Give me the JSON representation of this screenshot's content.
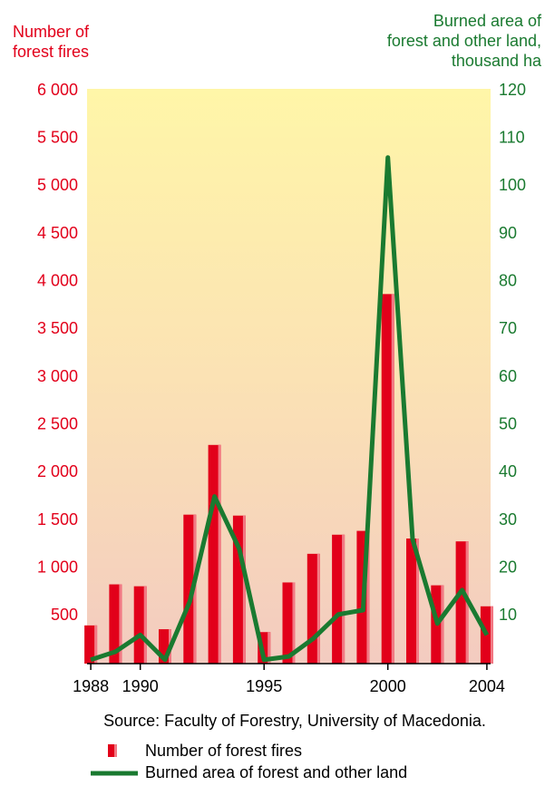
{
  "chart_data": {
    "type": "bar-line",
    "y_axis_label": [
      "Number of",
      "forest fires"
    ],
    "y2_axis_label": [
      "Burned area of",
      "forest and other land,",
      "thousand ha"
    ],
    "source": "Source: Faculty of Forestry, University of Macedonia.",
    "x": [
      1988,
      1989,
      1990,
      1991,
      1992,
      1993,
      1994,
      1995,
      1996,
      1997,
      1998,
      1999,
      2000,
      2001,
      2002,
      2003,
      2004
    ],
    "xlim": [
      1987.85,
      2004.15
    ],
    "xticks": [
      1988,
      1990,
      1995,
      2000,
      2004
    ],
    "ylim": [
      0,
      6000
    ],
    "yticks": [
      {
        "value": 500,
        "label": "500"
      },
      {
        "value": 1000,
        "label": "1 000"
      },
      {
        "value": 1500,
        "label": "1 500"
      },
      {
        "value": 2000,
        "label": "2 000"
      },
      {
        "value": 2500,
        "label": "2 500"
      },
      {
        "value": 3000,
        "label": "3 000"
      },
      {
        "value": 3500,
        "label": "3 500"
      },
      {
        "value": 4000,
        "label": "4 000"
      },
      {
        "value": 4500,
        "label": "4 500"
      },
      {
        "value": 5000,
        "label": "5 000"
      },
      {
        "value": 5500,
        "label": "5 500"
      },
      {
        "value": 6000,
        "label": "6 000"
      }
    ],
    "y2lim": [
      0,
      120
    ],
    "y2ticks": [
      10,
      20,
      30,
      40,
      50,
      60,
      70,
      80,
      90,
      100,
      110,
      120
    ],
    "series": [
      {
        "name": "Number of forest fires",
        "type": "bar",
        "color": "#e2001a",
        "values": [
          400,
          830,
          810,
          360,
          1560,
          2290,
          1550,
          330,
          850,
          1150,
          1350,
          1390,
          3870,
          1310,
          820,
          1280,
          600
        ]
      },
      {
        "name": "Burned area of forest and other land",
        "type": "line",
        "axis": "y2",
        "color": "#1a7a30",
        "values": [
          0.8,
          2.5,
          6,
          0.8,
          13,
          35,
          24,
          0.8,
          1.5,
          5.3,
          10.3,
          11.2,
          106,
          26,
          8.4,
          15.4,
          6
        ]
      }
    ]
  }
}
